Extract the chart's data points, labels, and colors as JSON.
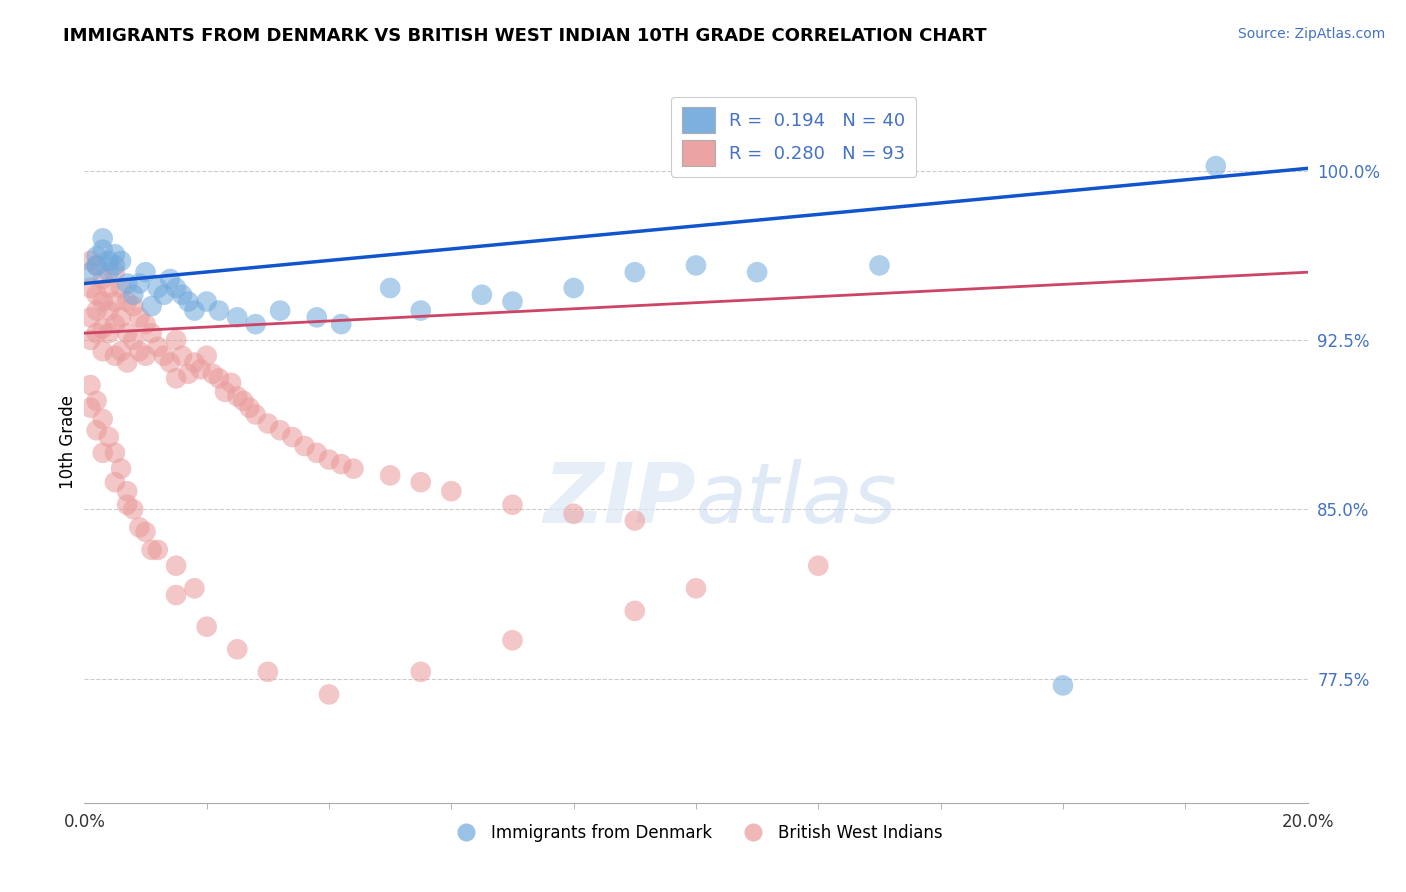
{
  "title": "IMMIGRANTS FROM DENMARK VS BRITISH WEST INDIAN 10TH GRADE CORRELATION CHART",
  "source": "Source: ZipAtlas.com",
  "ylabel": "10th Grade",
  "y_ticks": [
    0.775,
    0.85,
    0.925,
    1.0
  ],
  "y_tick_labels": [
    "77.5%",
    "85.0%",
    "92.5%",
    "100.0%"
  ],
  "xlim": [
    0.0,
    0.2
  ],
  "ylim": [
    0.72,
    1.04
  ],
  "blue_color": "#6fa8dc",
  "pink_color": "#ea9999",
  "blue_line_color": "#1155cc",
  "pink_line_color": "#cc4466",
  "legend_label1": "Immigrants from Denmark",
  "legend_label2": "British West Indians",
  "watermark_zip": "ZIP",
  "watermark_atlas": "atlas",
  "denmark_x": [
    0.001,
    0.002,
    0.002,
    0.003,
    0.003,
    0.004,
    0.004,
    0.005,
    0.005,
    0.006,
    0.007,
    0.008,
    0.009,
    0.01,
    0.011,
    0.012,
    0.013,
    0.014,
    0.015,
    0.016,
    0.017,
    0.018,
    0.02,
    0.022,
    0.025,
    0.028,
    0.032,
    0.038,
    0.042,
    0.05,
    0.055,
    0.065,
    0.07,
    0.08,
    0.09,
    0.1,
    0.11,
    0.13,
    0.16,
    0.185
  ],
  "denmark_y": [
    0.955,
    0.962,
    0.958,
    0.97,
    0.965,
    0.96,
    0.955,
    0.963,
    0.958,
    0.96,
    0.95,
    0.945,
    0.95,
    0.955,
    0.94,
    0.948,
    0.945,
    0.952,
    0.948,
    0.945,
    0.942,
    0.938,
    0.942,
    0.938,
    0.935,
    0.932,
    0.938,
    0.935,
    0.932,
    0.948,
    0.938,
    0.945,
    0.942,
    0.948,
    0.955,
    0.958,
    0.955,
    0.958,
    0.772,
    1.002
  ],
  "bwi_x": [
    0.001,
    0.001,
    0.001,
    0.001,
    0.002,
    0.002,
    0.002,
    0.002,
    0.003,
    0.003,
    0.003,
    0.003,
    0.004,
    0.004,
    0.004,
    0.005,
    0.005,
    0.005,
    0.005,
    0.006,
    0.006,
    0.006,
    0.007,
    0.007,
    0.007,
    0.008,
    0.008,
    0.009,
    0.009,
    0.01,
    0.01,
    0.011,
    0.012,
    0.013,
    0.014,
    0.015,
    0.015,
    0.016,
    0.017,
    0.018,
    0.019,
    0.02,
    0.021,
    0.022,
    0.023,
    0.024,
    0.025,
    0.026,
    0.027,
    0.028,
    0.03,
    0.032,
    0.034,
    0.036,
    0.038,
    0.04,
    0.042,
    0.044,
    0.05,
    0.055,
    0.06,
    0.07,
    0.08,
    0.09,
    0.001,
    0.002,
    0.003,
    0.004,
    0.005,
    0.006,
    0.007,
    0.008,
    0.01,
    0.012,
    0.015,
    0.018,
    0.001,
    0.002,
    0.003,
    0.005,
    0.007,
    0.009,
    0.011,
    0.015,
    0.02,
    0.025,
    0.03,
    0.04,
    0.055,
    0.07,
    0.09,
    0.1,
    0.12
  ],
  "bwi_y": [
    0.96,
    0.948,
    0.935,
    0.925,
    0.958,
    0.945,
    0.938,
    0.928,
    0.952,
    0.942,
    0.93,
    0.92,
    0.948,
    0.938,
    0.928,
    0.955,
    0.942,
    0.932,
    0.918,
    0.948,
    0.935,
    0.92,
    0.942,
    0.928,
    0.915,
    0.94,
    0.925,
    0.935,
    0.92,
    0.932,
    0.918,
    0.928,
    0.922,
    0.918,
    0.915,
    0.925,
    0.908,
    0.918,
    0.91,
    0.915,
    0.912,
    0.918,
    0.91,
    0.908,
    0.902,
    0.906,
    0.9,
    0.898,
    0.895,
    0.892,
    0.888,
    0.885,
    0.882,
    0.878,
    0.875,
    0.872,
    0.87,
    0.868,
    0.865,
    0.862,
    0.858,
    0.852,
    0.848,
    0.845,
    0.905,
    0.898,
    0.89,
    0.882,
    0.875,
    0.868,
    0.858,
    0.85,
    0.84,
    0.832,
    0.825,
    0.815,
    0.895,
    0.885,
    0.875,
    0.862,
    0.852,
    0.842,
    0.832,
    0.812,
    0.798,
    0.788,
    0.778,
    0.768,
    0.778,
    0.792,
    0.805,
    0.815,
    0.825
  ]
}
